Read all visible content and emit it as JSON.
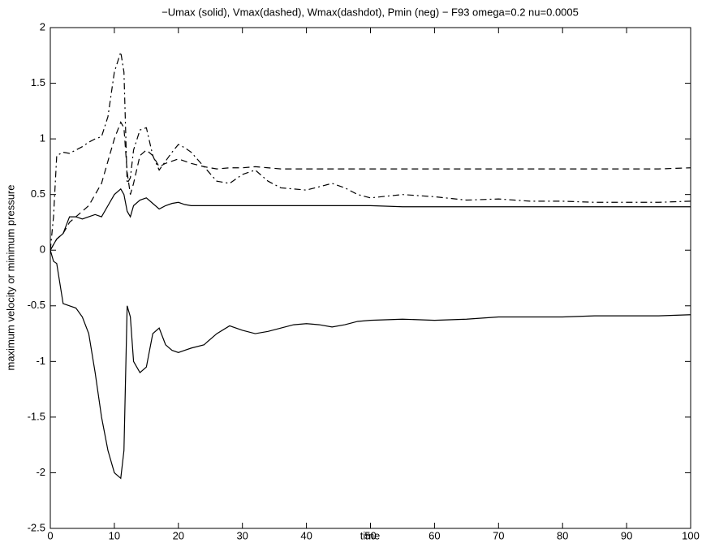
{
  "chart_data": {
    "type": "line",
    "title": "−Umax (solid), Vmax(dashed), Wmax(dashdot), Pmin (neg) − F93 omega=0.2 nu=0.0005",
    "x_label": "time",
    "y_label": "maximum velocity or minimum pressure",
    "x": [
      0,
      0.5,
      1,
      2,
      3,
      4,
      5,
      6,
      7,
      8,
      9,
      10,
      11,
      11.5,
      12,
      12.5,
      13,
      14,
      15,
      16,
      17,
      18,
      19,
      20,
      21,
      22,
      24,
      26,
      28,
      30,
      32,
      34,
      36,
      38,
      40,
      42,
      44,
      46,
      48,
      50,
      55,
      60,
      65,
      70,
      75,
      80,
      85,
      90,
      95,
      100
    ],
    "series": [
      {
        "color": "#000000",
        "dash": "solid",
        "values": [
          0,
          0.05,
          0.1,
          0.15,
          0.3,
          0.3,
          0.28,
          0.3,
          0.32,
          0.3,
          0.4,
          0.5,
          0.55,
          0.5,
          0.35,
          0.3,
          0.4,
          0.45,
          0.47,
          0.42,
          0.37,
          0.4,
          0.42,
          0.43,
          0.41,
          0.4,
          0.4,
          0.4,
          0.4,
          0.4,
          0.4,
          0.4,
          0.4,
          0.4,
          0.4,
          0.4,
          0.4,
          0.4,
          0.4,
          0.4,
          0.39,
          0.39,
          0.39,
          0.39,
          0.39,
          0.39,
          0.39,
          0.39,
          0.39,
          0.39
        ]
      },
      {
        "color": "#000000",
        "dash": "dashed",
        "values": [
          0,
          0.05,
          0.1,
          0.15,
          0.25,
          0.3,
          0.35,
          0.4,
          0.5,
          0.6,
          0.8,
          1.0,
          1.15,
          1.1,
          0.7,
          0.5,
          0.6,
          0.85,
          0.9,
          0.85,
          0.75,
          0.78,
          0.8,
          0.82,
          0.8,
          0.78,
          0.75,
          0.73,
          0.74,
          0.74,
          0.75,
          0.74,
          0.73,
          0.73,
          0.73,
          0.73,
          0.73,
          0.73,
          0.73,
          0.73,
          0.73,
          0.73,
          0.73,
          0.73,
          0.73,
          0.73,
          0.73,
          0.73,
          0.73,
          0.74
        ]
      },
      {
        "color": "#000000",
        "dash": "dashdot",
        "values": [
          0,
          0.3,
          0.85,
          0.88,
          0.87,
          0.9,
          0.93,
          0.97,
          1.0,
          1.02,
          1.2,
          1.6,
          1.78,
          1.6,
          0.6,
          0.65,
          0.9,
          1.08,
          1.1,
          0.85,
          0.72,
          0.8,
          0.88,
          0.95,
          0.92,
          0.88,
          0.75,
          0.62,
          0.6,
          0.68,
          0.72,
          0.62,
          0.56,
          0.55,
          0.54,
          0.57,
          0.6,
          0.56,
          0.5,
          0.47,
          0.5,
          0.48,
          0.45,
          0.46,
          0.44,
          0.44,
          0.43,
          0.43,
          0.43,
          0.44
        ]
      },
      {
        "color": "#000000",
        "dash": "solid",
        "values": [
          0,
          -0.1,
          -0.12,
          -0.48,
          -0.5,
          -0.52,
          -0.6,
          -0.75,
          -1.1,
          -1.5,
          -1.8,
          -2.0,
          -2.05,
          -1.8,
          -0.5,
          -0.6,
          -1.0,
          -1.1,
          -1.05,
          -0.75,
          -0.7,
          -0.85,
          -0.9,
          -0.92,
          -0.9,
          -0.88,
          -0.85,
          -0.75,
          -0.68,
          -0.72,
          -0.75,
          -0.73,
          -0.7,
          -0.67,
          -0.66,
          -0.67,
          -0.69,
          -0.67,
          -0.64,
          -0.63,
          -0.62,
          -0.63,
          -0.62,
          -0.6,
          -0.6,
          -0.6,
          -0.59,
          -0.59,
          -0.59,
          -0.58
        ]
      }
    ],
    "xlim": [
      0,
      100
    ],
    "xticks": [
      0,
      10,
      20,
      30,
      40,
      50,
      60,
      70,
      80,
      90,
      100
    ],
    "ylim": [
      -2.5,
      2
    ],
    "yticks": [
      -2.5,
      -2,
      -1.5,
      -1,
      -0.5,
      0,
      0.5,
      1,
      1.5,
      2
    ],
    "grid": false
  }
}
